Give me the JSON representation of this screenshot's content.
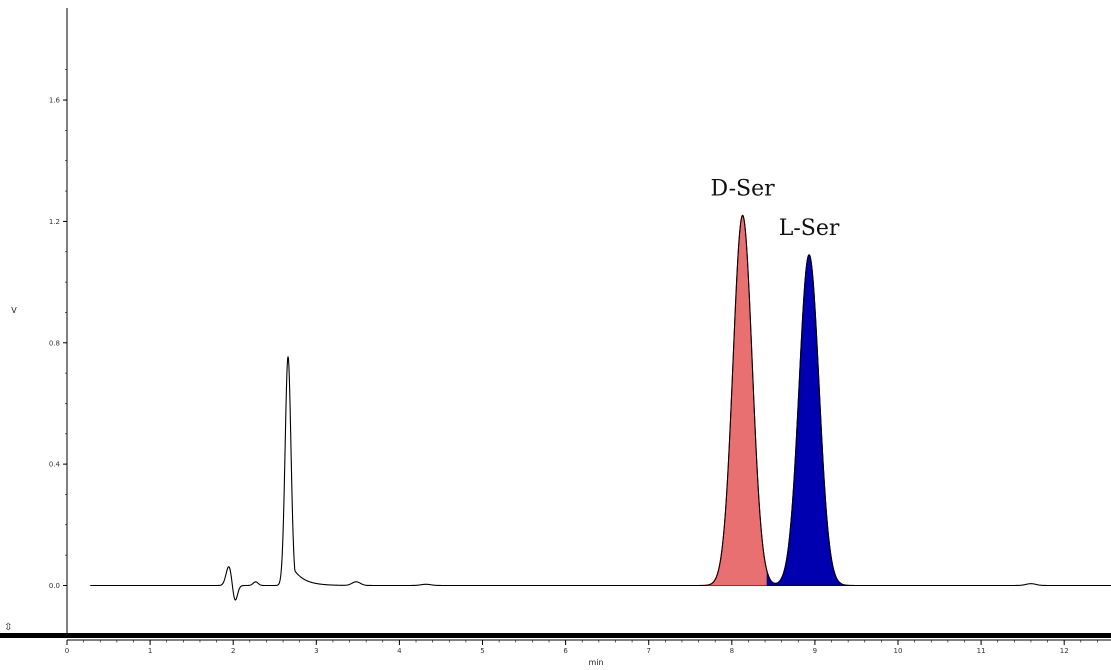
{
  "chart_data": {
    "type": "line",
    "title": "",
    "xlabel": "min",
    "ylabel": "V",
    "xlim": [
      0,
      12.6
    ],
    "ylim": [
      -0.1,
      1.9
    ],
    "x_ticks": [
      0,
      1,
      2,
      3,
      4,
      5,
      6,
      7,
      8,
      9,
      10,
      11,
      12
    ],
    "y_ticks": [
      {
        "value": 0.0,
        "label": "0.0"
      },
      {
        "value": 0.4,
        "label": "0.4"
      },
      {
        "value": 0.8,
        "label": "0.8"
      },
      {
        "value": 1.2,
        "label": "1.2"
      },
      {
        "value": 1.6,
        "label": "1.6"
      }
    ],
    "grid": false,
    "legend": "none",
    "peaks": [
      {
        "name": "",
        "time": 1.95,
        "height": 0.065,
        "sigma": 0.035
      },
      {
        "name": "",
        "time": 2.02,
        "height": -0.055,
        "sigma": 0.03
      },
      {
        "name": "",
        "time": 2.27,
        "height": 0.012,
        "sigma": 0.03
      },
      {
        "name": "",
        "time": 2.66,
        "height": 0.755,
        "sigma": 0.035,
        "tail": 0.13
      },
      {
        "name": "",
        "time": 3.48,
        "height": 0.012,
        "sigma": 0.05
      },
      {
        "name": "",
        "time": 4.32,
        "height": 0.004,
        "sigma": 0.06
      },
      {
        "name": "D-Ser",
        "time": 8.13,
        "height": 1.22,
        "sigma": 0.115,
        "fill": "#e87070",
        "stroke": "#b02020"
      },
      {
        "name": "L-Ser",
        "time": 8.93,
        "height": 1.09,
        "sigma": 0.12,
        "fill": "#0000b0",
        "stroke": "#00006a"
      },
      {
        "name": "",
        "time": 11.6,
        "height": 0.006,
        "sigma": 0.06
      }
    ],
    "annotations": [
      {
        "text": "D-Ser",
        "time": 8.13
      },
      {
        "text": "L-Ser",
        "time": 8.93
      }
    ]
  },
  "controls": {
    "scroll_icon": "⇳"
  },
  "colors": {
    "trace": "#000000",
    "axis": "#000000",
    "d_ser_fill": "#e87070",
    "l_ser_fill": "#0000b0"
  }
}
